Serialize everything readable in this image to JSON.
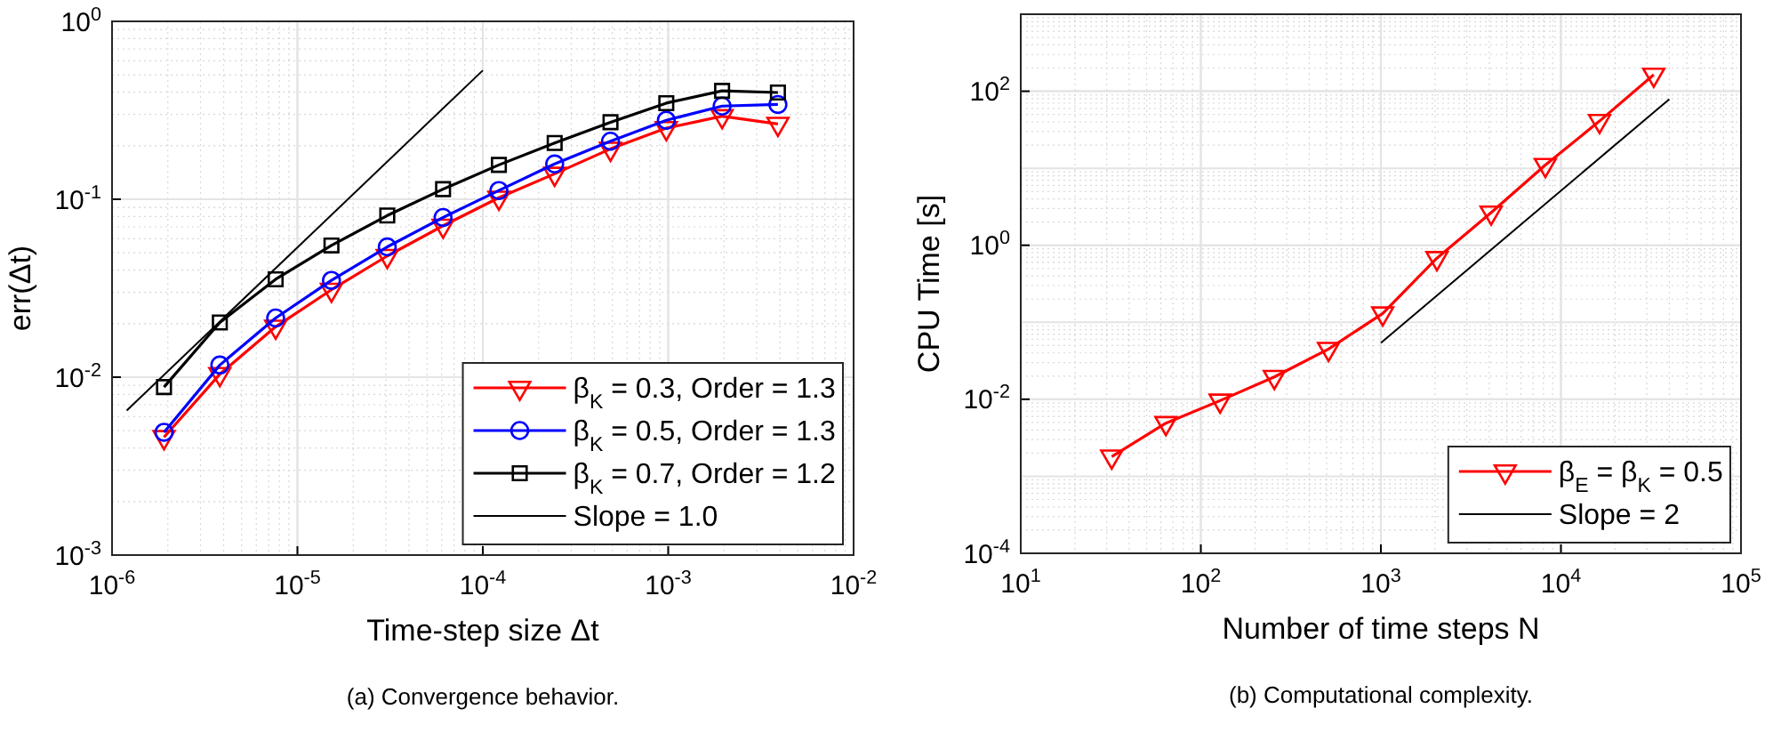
{
  "chart_data": [
    {
      "type": "line",
      "xlabel": "Time-step size Δt",
      "ylabel": "err(Δt)",
      "log": "xy",
      "grid": true,
      "legend": "bottom right",
      "line_style": "solid",
      "xlim": [
        1e-06,
        0.01
      ],
      "ylim": [
        0.001,
        1
      ],
      "xticks": [
        {
          "value": 1e-06,
          "label": "10$^{-6}$"
        },
        {
          "value": 1e-05,
          "label": "10$^{-5}$"
        },
        {
          "value": 0.0001,
          "label": "10$^{-4}$"
        },
        {
          "value": 0.001,
          "label": "10$^{-3}$"
        },
        {
          "value": 0.01,
          "label": "10$^{-2}$"
        }
      ],
      "yticks": [
        {
          "value": 0.001,
          "label": "10$^{-3}$"
        },
        {
          "value": 0.01,
          "label": "10$^{-2}$"
        },
        {
          "value": 0.1,
          "label": "10$^{-1}$"
        },
        {
          "value": 1,
          "label": "10$^{0}$"
        }
      ],
      "x": [
        1.907e-06,
        3.815e-06,
        7.63e-06,
        1.526e-05,
        3.052e-05,
        6.104e-05,
        0.0001221,
        0.0002441,
        0.0004883,
        0.0009766,
        0.001953,
        0.003906
      ],
      "series": [
        {
          "name": "β$_{K}$ = 0.3, Order = 1.3",
          "color": "#ff0000",
          "marker": "triangle",
          "values": [
            0.0046,
            0.0104,
            0.0192,
            0.031,
            0.048,
            0.071,
            0.102,
            0.139,
            0.192,
            0.251,
            0.293,
            0.265
          ]
        },
        {
          "name": "β$_{K}$ = 0.5, Order = 1.3",
          "color": "#0000ff",
          "marker": "circle",
          "values": [
            0.0049,
            0.0117,
            0.0215,
            0.035,
            0.054,
            0.079,
            0.112,
            0.158,
            0.212,
            0.278,
            0.334,
            0.341
          ]
        },
        {
          "name": "β$_{K}$ = 0.7, Order = 1.2",
          "color": "#000000",
          "marker": "square",
          "values": [
            0.0088,
            0.0203,
            0.0355,
            0.055,
            0.081,
            0.114,
            0.156,
            0.207,
            0.271,
            0.347,
            0.407,
            0.398
          ]
        },
        {
          "name": "Slope = 1.0",
          "color": "#000000",
          "marker": "none",
          "x": [
            1.2e-06,
            0.0001
          ],
          "values": [
            0.0065,
            0.53
          ]
        }
      ],
      "annotations": [
        "(a) Convergence behavior."
      ]
    },
    {
      "type": "line",
      "xlabel": "Number of time steps N",
      "ylabel": "CPU Time [s]",
      "log": "xy",
      "grid": true,
      "legend": "bottom right",
      "line_style": "solid",
      "xlim": [
        10,
        100000.0
      ],
      "ylim": [
        0.0001,
        1000.0
      ],
      "xticks": [
        {
          "value": 10,
          "label": "10$^{1}$"
        },
        {
          "value": 100,
          "label": "10$^{2}$"
        },
        {
          "value": 1000,
          "label": "10$^{3}$"
        },
        {
          "value": 10000.0,
          "label": "10$^{4}$"
        },
        {
          "value": 100000.0,
          "label": "10$^{5}$"
        }
      ],
      "yticks": [
        {
          "value": 0.0001,
          "label": "10$^{-4}$"
        },
        {
          "value": 0.01,
          "label": "10$^{-2}$"
        },
        {
          "value": 1,
          "label": "10$^{0}$"
        },
        {
          "value": 100,
          "label": "10$^{2}$"
        }
      ],
      "x": [
        32,
        64,
        128,
        256,
        512,
        1024,
        2048,
        4096,
        8192,
        16384,
        32768
      ],
      "series": [
        {
          "name": "β$_{E}$ = β$_{K}$ = 0.5",
          "color": "#ff0000",
          "marker": "triangle",
          "values": [
            0.0018,
            0.0049,
            0.0096,
            0.0195,
            0.045,
            0.13,
            0.68,
            2.65,
            11,
            41,
            164
          ]
        },
        {
          "name": "Slope = 2",
          "color": "#000000",
          "marker": "none",
          "x": [
            1000,
            40000
          ],
          "values": [
            0.054,
            79
          ]
        }
      ],
      "annotations": [
        "(b) Computational complexity."
      ]
    }
  ]
}
